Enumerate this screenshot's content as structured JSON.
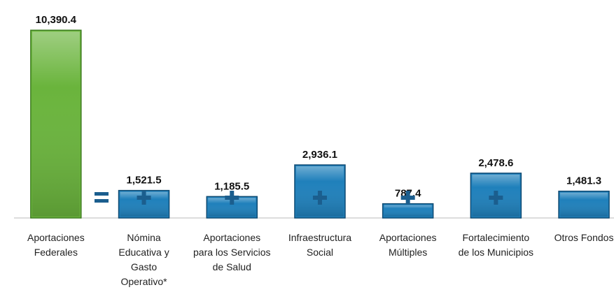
{
  "chart_data": {
    "type": "bar",
    "categories": [
      [
        "Aportaciones",
        "Federales"
      ],
      [
        "Nómina",
        "Educativa y",
        "Gasto",
        "Operativo*"
      ],
      [
        "Aportaciones",
        "para los Servicios",
        "de Salud"
      ],
      [
        "Infraestructura",
        "Social"
      ],
      [
        "Aportaciones",
        "Múltiples"
      ],
      [
        "Fortalecimiento",
        "de los Municipios"
      ],
      [
        "Otros Fondos"
      ]
    ],
    "values": [
      10390.4,
      1521.5,
      1185.5,
      2936.1,
      787.4,
      2478.6,
      1481.3
    ],
    "value_labels": [
      "10,390.4",
      "1,521.5",
      "1,185.5",
      "2,936.1",
      "787.4",
      "2,478.6",
      "1,481.3"
    ],
    "colors": [
      "#6ab43c",
      "#1f80bb",
      "#1f80bb",
      "#1f80bb",
      "#1f80bb",
      "#1f80bb",
      "#1f80bb"
    ],
    "ylim": [
      0,
      10400
    ]
  }
}
